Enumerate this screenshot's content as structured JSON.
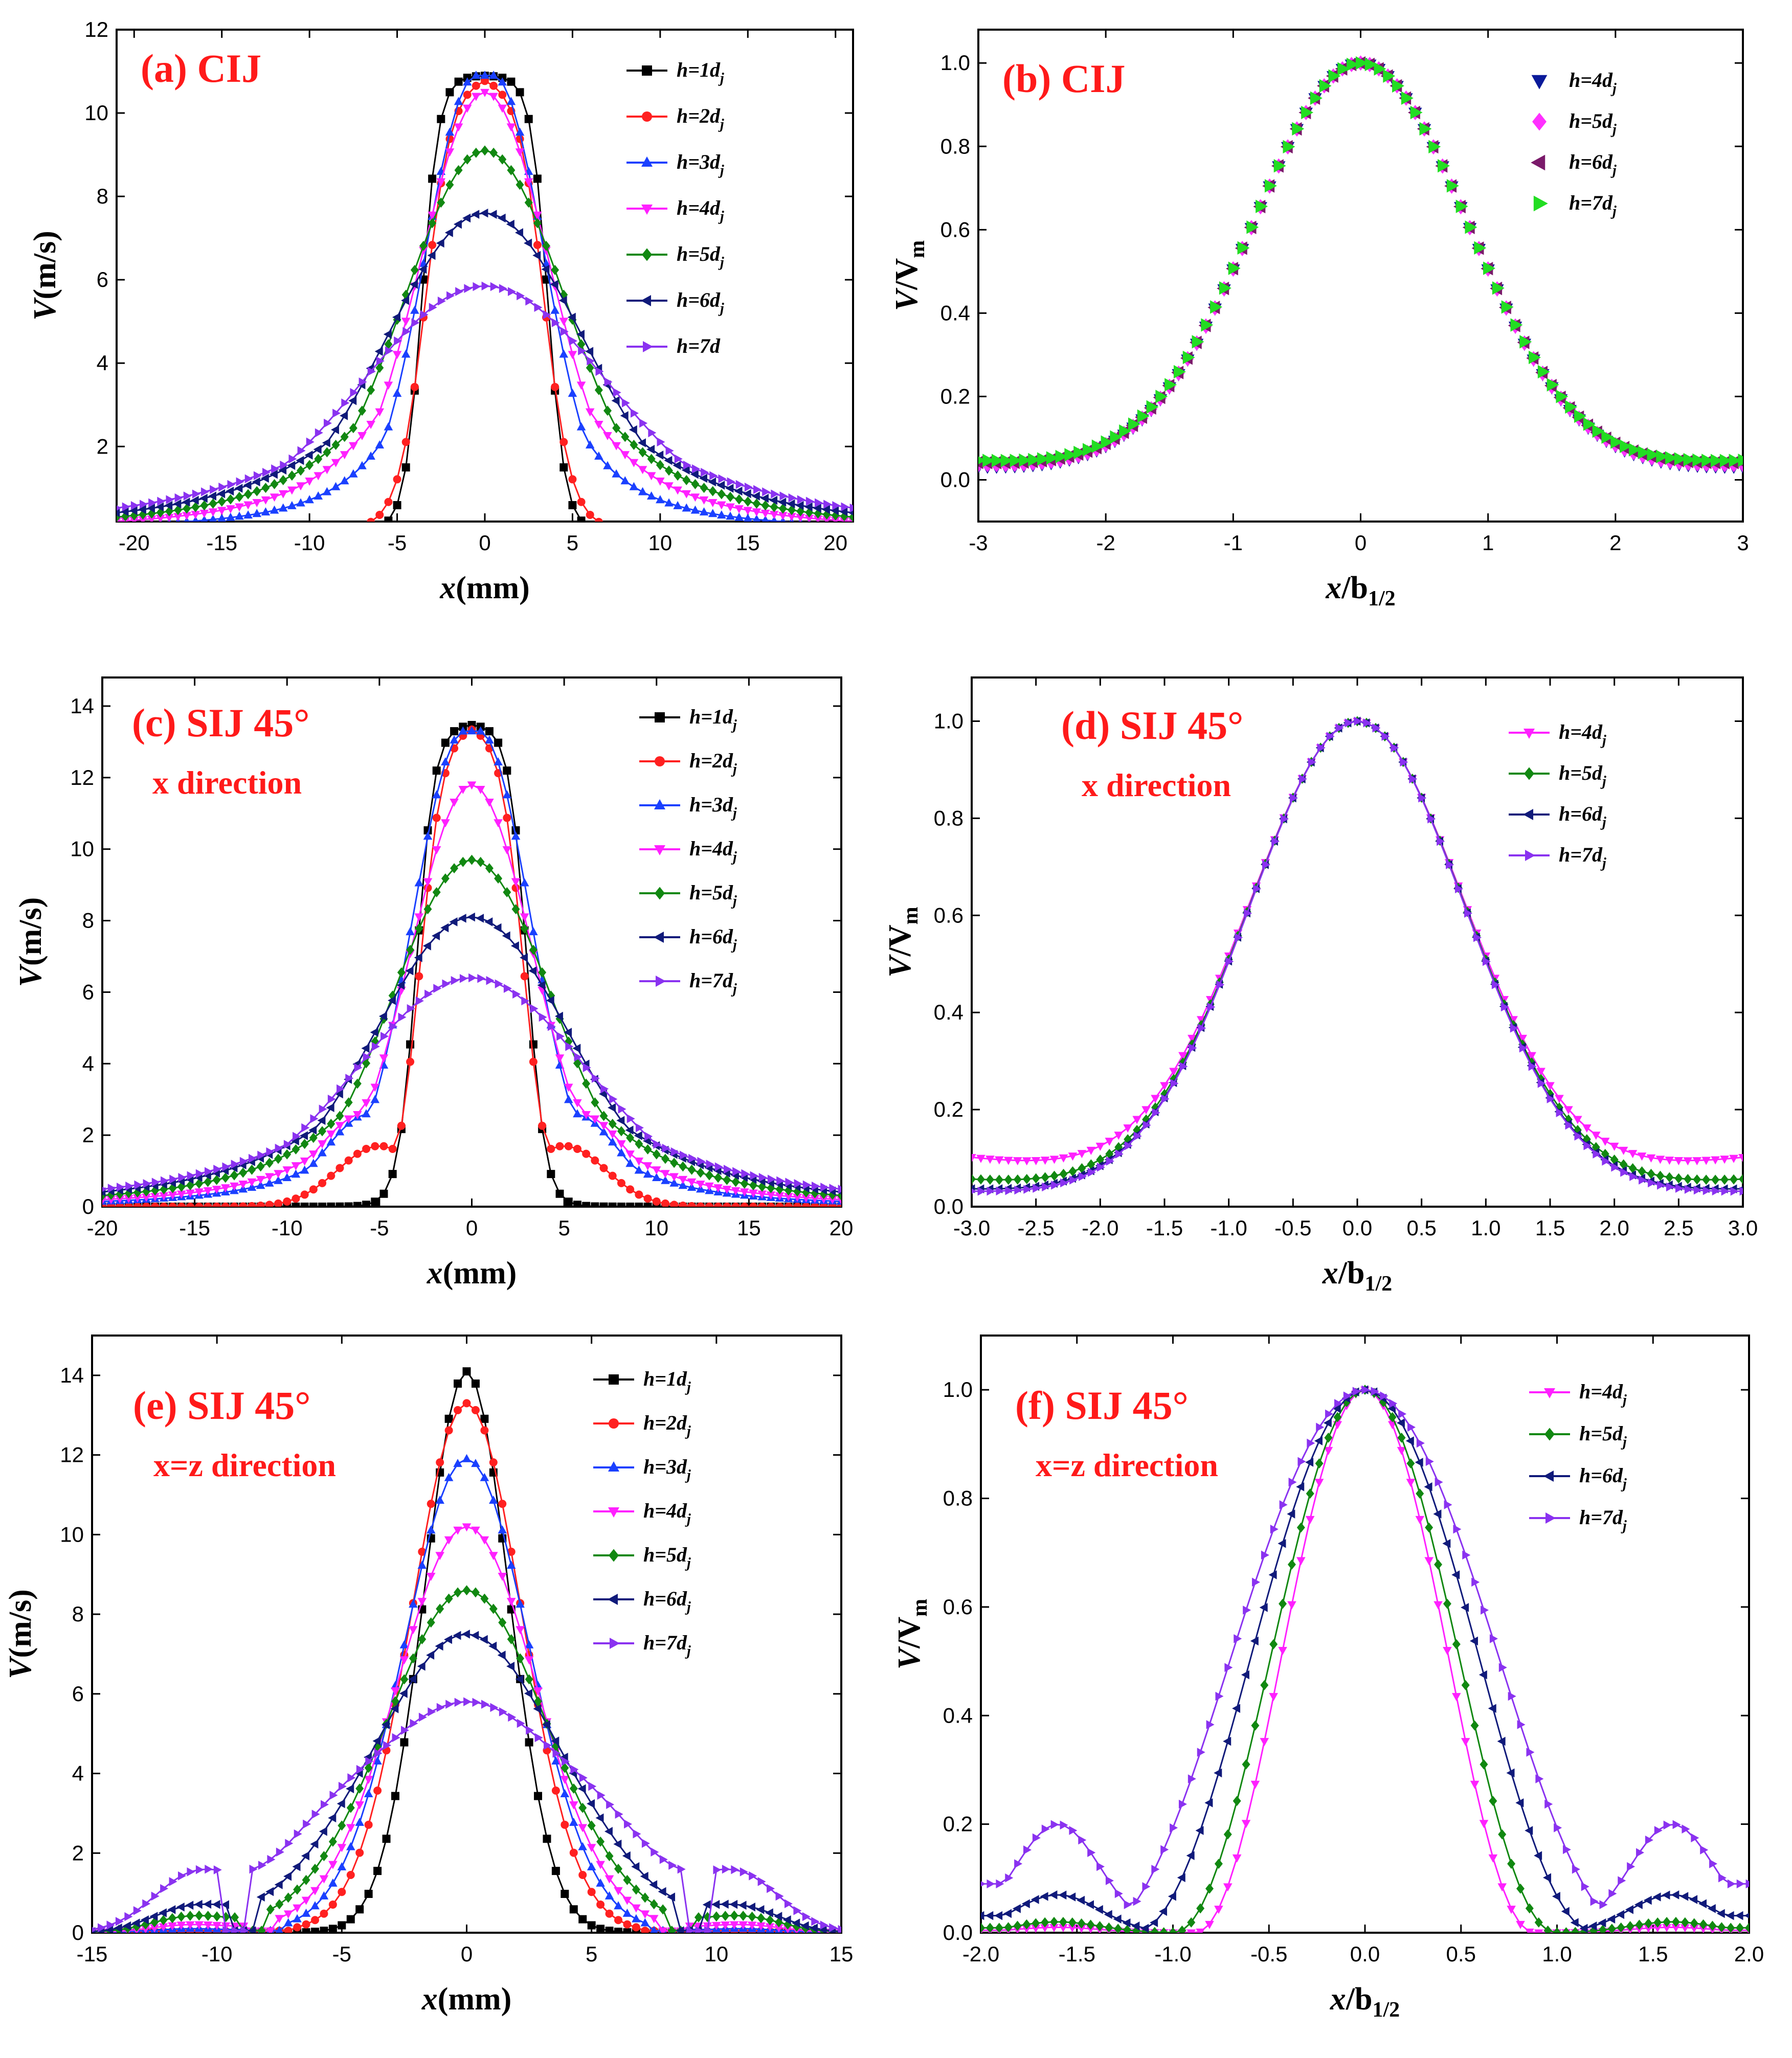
{
  "colors": {
    "h1": "#000000",
    "h2": "#ff2020",
    "h3": "#1a40ff",
    "h4": "#ff20ff",
    "h5": "#118811",
    "h6": "#101a7a",
    "h7": "#8a32f0",
    "b4": "#0a1a9a",
    "b5": "#ff30ff",
    "b6": "#7a1a6a",
    "b7": "#22dd22"
  },
  "chart_data": [
    {
      "id": "a",
      "type": "line",
      "title": "(a) CIJ",
      "subtitle": "",
      "xlabel_italic": "x",
      "xlabel_rest": "(mm)",
      "xlabel_sub": "",
      "ylabel_italic": "V",
      "ylabel_rest": "(m/s)",
      "ylabel_sub": "",
      "xlim": [
        -21,
        21
      ],
      "ylim": [
        0.2,
        12
      ],
      "xticks": [
        -20,
        -15,
        -10,
        -5,
        0,
        5,
        10,
        15,
        20
      ],
      "yticks": [
        2,
        4,
        6,
        8,
        10,
        12
      ],
      "profile": "flat",
      "legend": "top-right",
      "series": [
        {
          "name": "h=1dj",
          "label": "h=1",
          "sub": "j",
          "color": "h1",
          "marker": "square",
          "peak": 10.9,
          "plateau": 2.2,
          "width": 1.4,
          "min": 0
        },
        {
          "name": "h=2dj",
          "label": "h=2",
          "sub": "j",
          "color": "h2",
          "marker": "circle",
          "peak": 10.9,
          "plateau": 1.2,
          "width": 2.2,
          "min": 0
        },
        {
          "name": "h=3dj",
          "label": "h=3",
          "sub": "j",
          "color": "h3",
          "marker": "tri-up",
          "peak": 10.9,
          "plateau": 0.5,
          "width": 2.9,
          "min": 0
        },
        {
          "name": "h=4dj",
          "label": "h=4",
          "sub": "j",
          "color": "h4",
          "marker": "tri-down",
          "peak": 10.5,
          "plateau": 0,
          "width": 3.7,
          "min": 0
        },
        {
          "name": "h=5dj",
          "label": "h=5",
          "sub": "j",
          "color": "h5",
          "marker": "diamond",
          "peak": 9.1,
          "plateau": 0,
          "width": 4.6,
          "min": 0
        },
        {
          "name": "h=6dj",
          "label": "h=6",
          "sub": "j",
          "color": "h6",
          "marker": "tri-left",
          "peak": 7.6,
          "plateau": 0,
          "width": 5.6,
          "min": 0
        },
        {
          "name": "h=7d",
          "label": "h=7d",
          "sub": "",
          "color": "h7",
          "marker": "tri-right",
          "peak": 5.85,
          "plateau": 0,
          "width": 7.0,
          "min": 0
        }
      ]
    },
    {
      "id": "b",
      "type": "scatter",
      "title": "(b) CIJ",
      "subtitle": "",
      "xlabel_italic": "x",
      "xlabel_rest": "/b",
      "xlabel_sub": "1/2",
      "ylabel_italic": "V",
      "ylabel_rest": "/V",
      "ylabel_sub": "m",
      "xlim": [
        -3,
        3
      ],
      "ylim": [
        -0.1,
        1.08
      ],
      "xticks": [
        -3,
        -2,
        -1,
        0,
        1,
        2,
        3
      ],
      "yticks": [
        0.0,
        0.2,
        0.4,
        0.6,
        0.8,
        1.0
      ],
      "ytick_decimals": 1,
      "profile": "normalized",
      "legend": "top-right",
      "series": [
        {
          "name": "h=4dj",
          "label": "h=4",
          "sub": "j",
          "color": "b4",
          "marker": "tri-down",
          "tail": 0.03
        },
        {
          "name": "h=5dj",
          "label": "h=5",
          "sub": "j",
          "color": "b5",
          "marker": "diamond",
          "tail": 0.035
        },
        {
          "name": "h=6dj",
          "label": "h=6",
          "sub": "j",
          "color": "b6",
          "marker": "tri-left",
          "tail": 0.04
        },
        {
          "name": "h=7dj",
          "label": "h=7",
          "sub": "j",
          "color": "b7",
          "marker": "tri-right",
          "tail": 0.045
        }
      ]
    },
    {
      "id": "c",
      "type": "line",
      "title": "(c) SIJ 45°",
      "subtitle": "x direction",
      "xlabel_italic": "x",
      "xlabel_rest": "(mm)",
      "xlabel_sub": "",
      "ylabel_italic": "V",
      "ylabel_rest": "(m/s)",
      "ylabel_sub": "",
      "xlim": [
        -20,
        20
      ],
      "ylim": [
        0,
        14.8
      ],
      "xticks": [
        -20,
        -15,
        -10,
        -5,
        0,
        5,
        10,
        15,
        20
      ],
      "yticks": [
        0,
        2,
        4,
        6,
        8,
        10,
        12,
        14
      ],
      "profile": "flat",
      "legend": "top-right",
      "series": [
        {
          "name": "h=1dj",
          "label": "h=1",
          "sub": "j",
          "color": "h1",
          "marker": "square",
          "peak": 13.5,
          "plateau": 1.6,
          "width": 1.4,
          "min": 0
        },
        {
          "name": "h=2dj",
          "label": "h=2",
          "sub": "j",
          "color": "h2",
          "marker": "circle",
          "peak": 13.5,
          "plateau": 1.0,
          "width": 1.8,
          "min": 0,
          "shoulder": 1.7,
          "shoulder_x": 5.0
        },
        {
          "name": "h=3dj",
          "label": "h=3",
          "sub": "j",
          "color": "h3",
          "marker": "tri-up",
          "peak": 13.3,
          "plateau": 0.4,
          "width": 2.8,
          "min": 0.05,
          "shoulder": 2.6,
          "shoulder_x": 5.5
        },
        {
          "name": "h=4dj",
          "label": "h=4",
          "sub": "j",
          "color": "h4",
          "marker": "tri-down",
          "peak": 11.8,
          "plateau": 0,
          "width": 3.3,
          "min": 0.1,
          "shoulder": 2.6,
          "shoulder_x": 5.8
        },
        {
          "name": "h=5dj",
          "label": "h=5",
          "sub": "j",
          "color": "h5",
          "marker": "diamond",
          "peak": 9.7,
          "plateau": 0,
          "width": 4.3,
          "min": 0.15,
          "shoulder": 1.6,
          "shoulder_x": 6.0
        },
        {
          "name": "h=6dj",
          "label": "h=6",
          "sub": "j",
          "color": "h6",
          "marker": "tri-left",
          "peak": 8.1,
          "plateau": 0,
          "width": 5.2,
          "min": 0.18,
          "shoulder": 0.9,
          "shoulder_x": 6.5
        },
        {
          "name": "h=7dj",
          "label": "h=7",
          "sub": "j",
          "color": "h7",
          "marker": "tri-right",
          "peak": 6.4,
          "plateau": 0,
          "width": 6.2,
          "min": 0.2,
          "shoulder": 0.5,
          "shoulder_x": 7.0
        }
      ]
    },
    {
      "id": "d",
      "type": "line",
      "title": "(d) SIJ 45°",
      "subtitle": "x direction",
      "xlabel_italic": "x",
      "xlabel_rest": "/b",
      "xlabel_sub": "1/2",
      "ylabel_italic": "V",
      "ylabel_rest": "/V",
      "ylabel_sub": "m",
      "xlim": [
        -3,
        3
      ],
      "ylim": [
        0,
        1.09
      ],
      "xticks": [
        -3.0,
        -2.5,
        -2.0,
        -1.5,
        -1.0,
        -0.5,
        0.0,
        0.5,
        1.0,
        1.5,
        2.0,
        2.5,
        3.0
      ],
      "xtick_decimals": 1,
      "yticks": [
        0.0,
        0.2,
        0.4,
        0.6,
        0.8,
        1.0
      ],
      "ytick_decimals": 1,
      "profile": "normalized-spread",
      "legend": "top-right",
      "series": [
        {
          "name": "h=4dj",
          "label": "h=4",
          "sub": "j",
          "color": "h4",
          "marker": "tri-down",
          "tail": 0.1
        },
        {
          "name": "h=5dj",
          "label": "h=5",
          "sub": "j",
          "color": "h5",
          "marker": "diamond",
          "tail": 0.055
        },
        {
          "name": "h=6dj",
          "label": "h=6",
          "sub": "j",
          "color": "h6",
          "marker": "tri-left",
          "tail": 0.035
        },
        {
          "name": "h=7dj",
          "label": "h=7",
          "sub": "j",
          "color": "h7",
          "marker": "tri-right",
          "tail": 0.03
        }
      ]
    },
    {
      "id": "e",
      "type": "line",
      "title": "(e) SIJ 45°",
      "subtitle": "x=z direction",
      "xlabel_italic": "x",
      "xlabel_rest": "(mm)",
      "xlabel_sub": "",
      "ylabel_italic": "V",
      "ylabel_rest": "(m/s)",
      "ylabel_sub": "",
      "xlim": [
        -15,
        15
      ],
      "ylim": [
        0,
        15
      ],
      "xticks": [
        -15,
        -10,
        -5,
        0,
        5,
        10,
        15
      ],
      "yticks": [
        0,
        2,
        4,
        6,
        8,
        10,
        12,
        14
      ],
      "profile": "lobed",
      "legend": "top-right",
      "series": [
        {
          "name": "h=1dj",
          "label": "h=1",
          "sub": "j",
          "color": "h1",
          "marker": "square",
          "peak": 14.1,
          "width": 1.7,
          "lobe": 0.0,
          "zero": 6.5
        },
        {
          "name": "h=2dj",
          "label": "h=2",
          "sub": "j",
          "color": "h2",
          "marker": "circle",
          "peak": 13.3,
          "width": 2.2,
          "lobe": 0.05,
          "zero": 7.5
        },
        {
          "name": "h=3dj",
          "label": "h=3",
          "sub": "j",
          "color": "h3",
          "marker": "tri-up",
          "peak": 11.9,
          "width": 2.5,
          "lobe": 0.1,
          "zero": 8.0
        },
        {
          "name": "h=4dj",
          "label": "h=4",
          "sub": "j",
          "color": "h4",
          "marker": "tri-down",
          "peak": 10.2,
          "width": 2.8,
          "lobe": 0.2,
          "zero": 8.3
        },
        {
          "name": "h=5dj",
          "label": "h=5",
          "sub": "j",
          "color": "h5",
          "marker": "diamond",
          "peak": 8.6,
          "width": 3.2,
          "lobe": 0.4,
          "zero": 8.6
        },
        {
          "name": "h=6dj",
          "label": "h=6",
          "sub": "j",
          "color": "h6",
          "marker": "tri-left",
          "peak": 7.5,
          "width": 3.7,
          "lobe": 0.6,
          "zero": 8.9
        },
        {
          "name": "h=7dj",
          "label": "h=7",
          "sub": "j",
          "color": "h7",
          "marker": "tri-right",
          "peak": 5.8,
          "width": 4.6,
          "lobe": 1.2,
          "zero": 9.3
        }
      ]
    },
    {
      "id": "f",
      "type": "line",
      "title": "(f) SIJ 45°",
      "subtitle": "x=z direction",
      "xlabel_italic": "x",
      "xlabel_rest": "/b",
      "xlabel_sub": "1/2",
      "ylabel_italic": "V",
      "ylabel_rest": "/V",
      "ylabel_sub": "m",
      "xlim": [
        -2,
        2
      ],
      "ylim": [
        0,
        1.1
      ],
      "xticks": [
        -2.0,
        -1.5,
        -1.0,
        -0.5,
        0.0,
        0.5,
        1.0,
        1.5,
        2.0
      ],
      "xtick_decimals": 1,
      "yticks": [
        0.0,
        0.2,
        0.4,
        0.6,
        0.8,
        1.0
      ],
      "ytick_decimals": 1,
      "profile": "lobed-norm",
      "legend": "top-right",
      "series": [
        {
          "name": "h=4dj",
          "label": "h=4",
          "sub": "j",
          "color": "h4",
          "marker": "tri-down",
          "half": 0.55,
          "lobe": 0.01
        },
        {
          "name": "h=5dj",
          "label": "h=5",
          "sub": "j",
          "color": "h5",
          "marker": "diamond",
          "half": 0.62,
          "lobe": 0.02
        },
        {
          "name": "h=6dj",
          "label": "h=6",
          "sub": "j",
          "color": "h6",
          "marker": "tri-left",
          "half": 0.75,
          "lobe": 0.07
        },
        {
          "name": "h=7dj",
          "label": "h=7",
          "sub": "j",
          "color": "h7",
          "marker": "tri-right",
          "half": 0.88,
          "lobe": 0.2
        }
      ]
    }
  ]
}
